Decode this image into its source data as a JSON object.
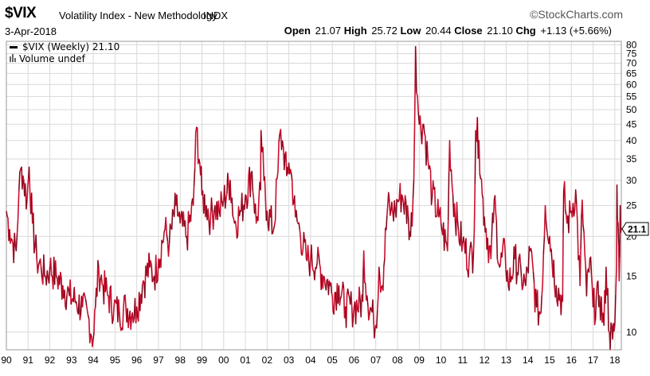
{
  "header": {
    "symbol": "$VIX",
    "description": "Volatility Index - New Methodology",
    "exchange": "INDX",
    "brand": "©StockCharts.com",
    "date": "3-Apr-2018",
    "open_label": "Open",
    "open": "21.07",
    "high_label": "High",
    "high": "25.72",
    "low_label": "Low",
    "low": "20.44",
    "close_label": "Close",
    "close": "21.10",
    "chg_label": "Chg",
    "chg": "+1.13 (+5.66%)",
    "chg_color": "#000000"
  },
  "legend": {
    "series": "$VIX (Weekly) 21.10",
    "volume": "Volume undef"
  },
  "colors": {
    "line": "#c8102e",
    "dark": "#000000",
    "grid": "#d9d9d9"
  },
  "chart_data": {
    "type": "line",
    "title": "$VIX Volatility Index - New Methodology",
    "y_scale": "log",
    "ylim": [
      8.8,
      82
    ],
    "xlim": [
      1990.0,
      2018.3
    ],
    "last_value_label": "21.1",
    "y_ticks": [
      10,
      15,
      20,
      25,
      30,
      35,
      40,
      45,
      50,
      55,
      60,
      65,
      70,
      75,
      80
    ],
    "y_tick_labels": [
      "10",
      "15",
      "20",
      "25",
      "30",
      "35",
      "40",
      "45",
      "50",
      "55",
      "60",
      "65",
      "70",
      "75",
      "80"
    ],
    "x_ticks": [
      1990,
      1991,
      1992,
      1993,
      1994,
      1995,
      1996,
      1997,
      1998,
      1999,
      2000,
      2001,
      2002,
      2003,
      2004,
      2005,
      2006,
      2007,
      2008,
      2009,
      2010,
      2011,
      2012,
      2013,
      2014,
      2015,
      2016,
      2017,
      2018
    ],
    "x_tick_labels": [
      "90",
      "91",
      "92",
      "93",
      "94",
      "95",
      "96",
      "97",
      "98",
      "99",
      "00",
      "01",
      "02",
      "03",
      "04",
      "05",
      "06",
      "07",
      "08",
      "09",
      "10",
      "11",
      "12",
      "13",
      "14",
      "15",
      "16",
      "17",
      "18"
    ],
    "series": [
      {
        "name": "$VIX (Weekly)",
        "points": [
          [
            1990.0,
            24
          ],
          [
            1990.15,
            21
          ],
          [
            1990.3,
            19
          ],
          [
            1990.45,
            18
          ],
          [
            1990.58,
            28
          ],
          [
            1990.7,
            33
          ],
          [
            1990.8,
            30
          ],
          [
            1990.95,
            26
          ],
          [
            1991.05,
            33
          ],
          [
            1991.2,
            22
          ],
          [
            1991.4,
            17
          ],
          [
            1991.6,
            16
          ],
          [
            1991.8,
            15
          ],
          [
            1992.0,
            16
          ],
          [
            1992.3,
            15
          ],
          [
            1992.6,
            14
          ],
          [
            1992.9,
            13
          ],
          [
            1993.2,
            12.5
          ],
          [
            1993.5,
            12
          ],
          [
            1993.8,
            11
          ],
          [
            1994.0,
            9.5
          ],
          [
            1994.1,
            12
          ],
          [
            1994.25,
            16
          ],
          [
            1994.45,
            14
          ],
          [
            1994.7,
            13
          ],
          [
            1994.95,
            12
          ],
          [
            1995.2,
            11.5
          ],
          [
            1995.5,
            12
          ],
          [
            1995.8,
            11.5
          ],
          [
            1996.0,
            12
          ],
          [
            1996.3,
            14.5
          ],
          [
            1996.6,
            16
          ],
          [
            1996.8,
            15
          ],
          [
            1997.0,
            17
          ],
          [
            1997.3,
            21
          ],
          [
            1997.5,
            19
          ],
          [
            1997.8,
            25
          ],
          [
            1998.0,
            22
          ],
          [
            1998.3,
            20
          ],
          [
            1998.6,
            25
          ],
          [
            1998.75,
            44
          ],
          [
            1998.9,
            34
          ],
          [
            1999.0,
            27
          ],
          [
            1999.2,
            25
          ],
          [
            1999.4,
            23
          ],
          [
            1999.6,
            25
          ],
          [
            1999.8,
            24
          ],
          [
            2000.0,
            26
          ],
          [
            2000.3,
            30
          ],
          [
            2000.5,
            22
          ],
          [
            2000.8,
            24
          ],
          [
            2001.0,
            27
          ],
          [
            2001.3,
            32
          ],
          [
            2001.5,
            22
          ],
          [
            2001.7,
            28
          ],
          [
            2001.72,
            43
          ],
          [
            2001.85,
            30
          ],
          [
            2002.0,
            24
          ],
          [
            2002.3,
            21
          ],
          [
            2002.5,
            32
          ],
          [
            2002.58,
            42
          ],
          [
            2002.75,
            38
          ],
          [
            2002.9,
            31
          ],
          [
            2003.0,
            34
          ],
          [
            2003.15,
            30
          ],
          [
            2003.3,
            23
          ],
          [
            2003.5,
            21
          ],
          [
            2003.8,
            17
          ],
          [
            2004.0,
            17
          ],
          [
            2004.3,
            16.5
          ],
          [
            2004.6,
            15
          ],
          [
            2004.9,
            14
          ],
          [
            2005.0,
            13
          ],
          [
            2005.3,
            14
          ],
          [
            2005.6,
            12
          ],
          [
            2005.9,
            12
          ],
          [
            2006.0,
            12
          ],
          [
            2006.4,
            12.5
          ],
          [
            2006.45,
            18
          ],
          [
            2006.6,
            13
          ],
          [
            2006.9,
            11
          ],
          [
            2007.0,
            10.5
          ],
          [
            2007.15,
            16
          ],
          [
            2007.3,
            14
          ],
          [
            2007.55,
            25
          ],
          [
            2007.7,
            24
          ],
          [
            2007.9,
            24
          ],
          [
            2008.0,
            26
          ],
          [
            2008.2,
            27
          ],
          [
            2008.5,
            23
          ],
          [
            2008.6,
            20
          ],
          [
            2008.75,
            30
          ],
          [
            2008.83,
            79
          ],
          [
            2008.92,
            55
          ],
          [
            2009.0,
            45
          ],
          [
            2009.2,
            45
          ],
          [
            2009.4,
            35
          ],
          [
            2009.6,
            27
          ],
          [
            2009.9,
            23
          ],
          [
            2010.0,
            22
          ],
          [
            2010.3,
            18
          ],
          [
            2010.4,
            40
          ],
          [
            2010.55,
            27
          ],
          [
            2010.8,
            21
          ],
          [
            2011.0,
            19
          ],
          [
            2011.3,
            17
          ],
          [
            2011.5,
            18
          ],
          [
            2011.6,
            43
          ],
          [
            2011.75,
            40
          ],
          [
            2011.9,
            27
          ],
          [
            2012.0,
            23
          ],
          [
            2012.3,
            17
          ],
          [
            2012.45,
            26
          ],
          [
            2012.7,
            16
          ],
          [
            2012.95,
            18
          ],
          [
            2013.1,
            14
          ],
          [
            2013.4,
            17
          ],
          [
            2013.7,
            15
          ],
          [
            2013.9,
            14
          ],
          [
            2014.1,
            18
          ],
          [
            2014.4,
            12
          ],
          [
            2014.6,
            11.5
          ],
          [
            2014.8,
            25
          ],
          [
            2015.0,
            20
          ],
          [
            2015.3,
            14
          ],
          [
            2015.6,
            12.5
          ],
          [
            2015.65,
            28
          ],
          [
            2015.8,
            22
          ],
          [
            2016.0,
            24
          ],
          [
            2016.2,
            28
          ],
          [
            2016.4,
            14
          ],
          [
            2016.5,
            26
          ],
          [
            2016.7,
            13
          ],
          [
            2016.85,
            17
          ],
          [
            2017.0,
            12
          ],
          [
            2017.3,
            13
          ],
          [
            2017.5,
            10.5
          ],
          [
            2017.6,
            16
          ],
          [
            2017.75,
            10
          ],
          [
            2017.9,
            9.5
          ],
          [
            2018.0,
            10.5
          ],
          [
            2018.08,
            16
          ],
          [
            2018.1,
            29
          ],
          [
            2018.15,
            22
          ],
          [
            2018.2,
            14.5
          ],
          [
            2018.25,
            25
          ],
          [
            2018.3,
            21.1
          ]
        ]
      }
    ]
  }
}
